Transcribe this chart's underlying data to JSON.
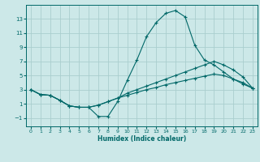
{
  "xlabel": "Humidex (Indice chaleur)",
  "background_color": "#cce8e8",
  "grid_color": "#aacece",
  "line_color": "#006868",
  "xlim": [
    -0.5,
    23.5
  ],
  "ylim": [
    -2.2,
    15.0
  ],
  "yticks": [
    -1,
    1,
    3,
    5,
    7,
    9,
    11,
    13
  ],
  "xticks": [
    0,
    1,
    2,
    3,
    4,
    5,
    6,
    7,
    8,
    9,
    10,
    11,
    12,
    13,
    14,
    15,
    16,
    17,
    18,
    19,
    20,
    21,
    22,
    23
  ],
  "hours": [
    0,
    1,
    2,
    3,
    4,
    5,
    6,
    7,
    8,
    9,
    10,
    11,
    12,
    13,
    14,
    15,
    16,
    17,
    18,
    19,
    20,
    21,
    22,
    23
  ],
  "line1": [
    3.0,
    2.3,
    2.2,
    1.5,
    0.7,
    0.5,
    0.5,
    -0.8,
    -0.8,
    1.3,
    4.3,
    7.2,
    10.5,
    12.5,
    13.8,
    14.2,
    13.3,
    9.3,
    7.2,
    6.5,
    5.5,
    4.5,
    3.8,
    3.2
  ],
  "line2": [
    3.0,
    2.3,
    2.2,
    1.5,
    0.7,
    0.5,
    0.5,
    0.8,
    1.3,
    1.8,
    2.5,
    3.0,
    3.5,
    4.0,
    4.5,
    5.0,
    5.5,
    6.0,
    6.5,
    7.0,
    6.5,
    5.8,
    4.8,
    3.2
  ],
  "line3": [
    3.0,
    2.3,
    2.2,
    1.5,
    0.7,
    0.5,
    0.5,
    0.8,
    1.3,
    1.8,
    2.2,
    2.6,
    3.0,
    3.3,
    3.7,
    4.0,
    4.3,
    4.6,
    4.9,
    5.2,
    5.0,
    4.5,
    4.0,
    3.2
  ]
}
